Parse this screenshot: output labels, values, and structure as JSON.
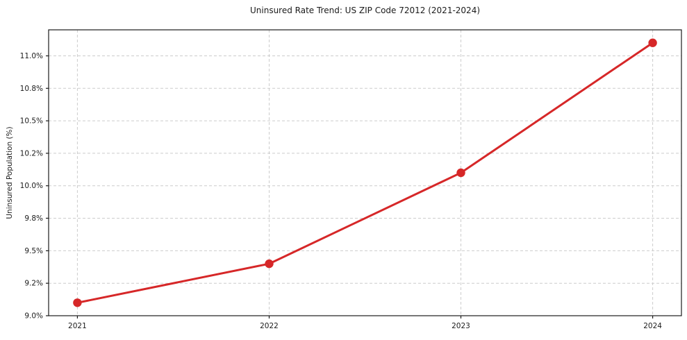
{
  "chart_data": {
    "type": "line",
    "title": "Uninsured Rate Trend: US ZIP Code 72012 (2021-2024)",
    "ylabel": "Uninsured Population (%)",
    "xlabel": "",
    "x": [
      2021,
      2022,
      2023,
      2024
    ],
    "x_tick_labels": [
      "2021",
      "2022",
      "2023",
      "2024"
    ],
    "series": [
      {
        "name": "Uninsured rate",
        "values": [
          9.1,
          9.4,
          10.1,
          11.1
        ]
      }
    ],
    "y_ticks": [
      9.0,
      9.25,
      9.5,
      9.75,
      10.0,
      10.25,
      10.5,
      10.75,
      11.0
    ],
    "y_tick_labels": [
      "9.0%",
      "9.2%",
      "9.5%",
      "9.8%",
      "10.0%",
      "10.2%",
      "10.5%",
      "10.8%",
      "11.0%"
    ],
    "xlim": [
      2020.85,
      2024.15
    ],
    "ylim": [
      9.0,
      11.2
    ],
    "grid": true,
    "legend": false,
    "line_color": "#d62728",
    "grid_color": "#cccccc",
    "axis_color": "#1a1a1a",
    "text_color": "#1a1a1a",
    "background_color": "#ffffff"
  }
}
